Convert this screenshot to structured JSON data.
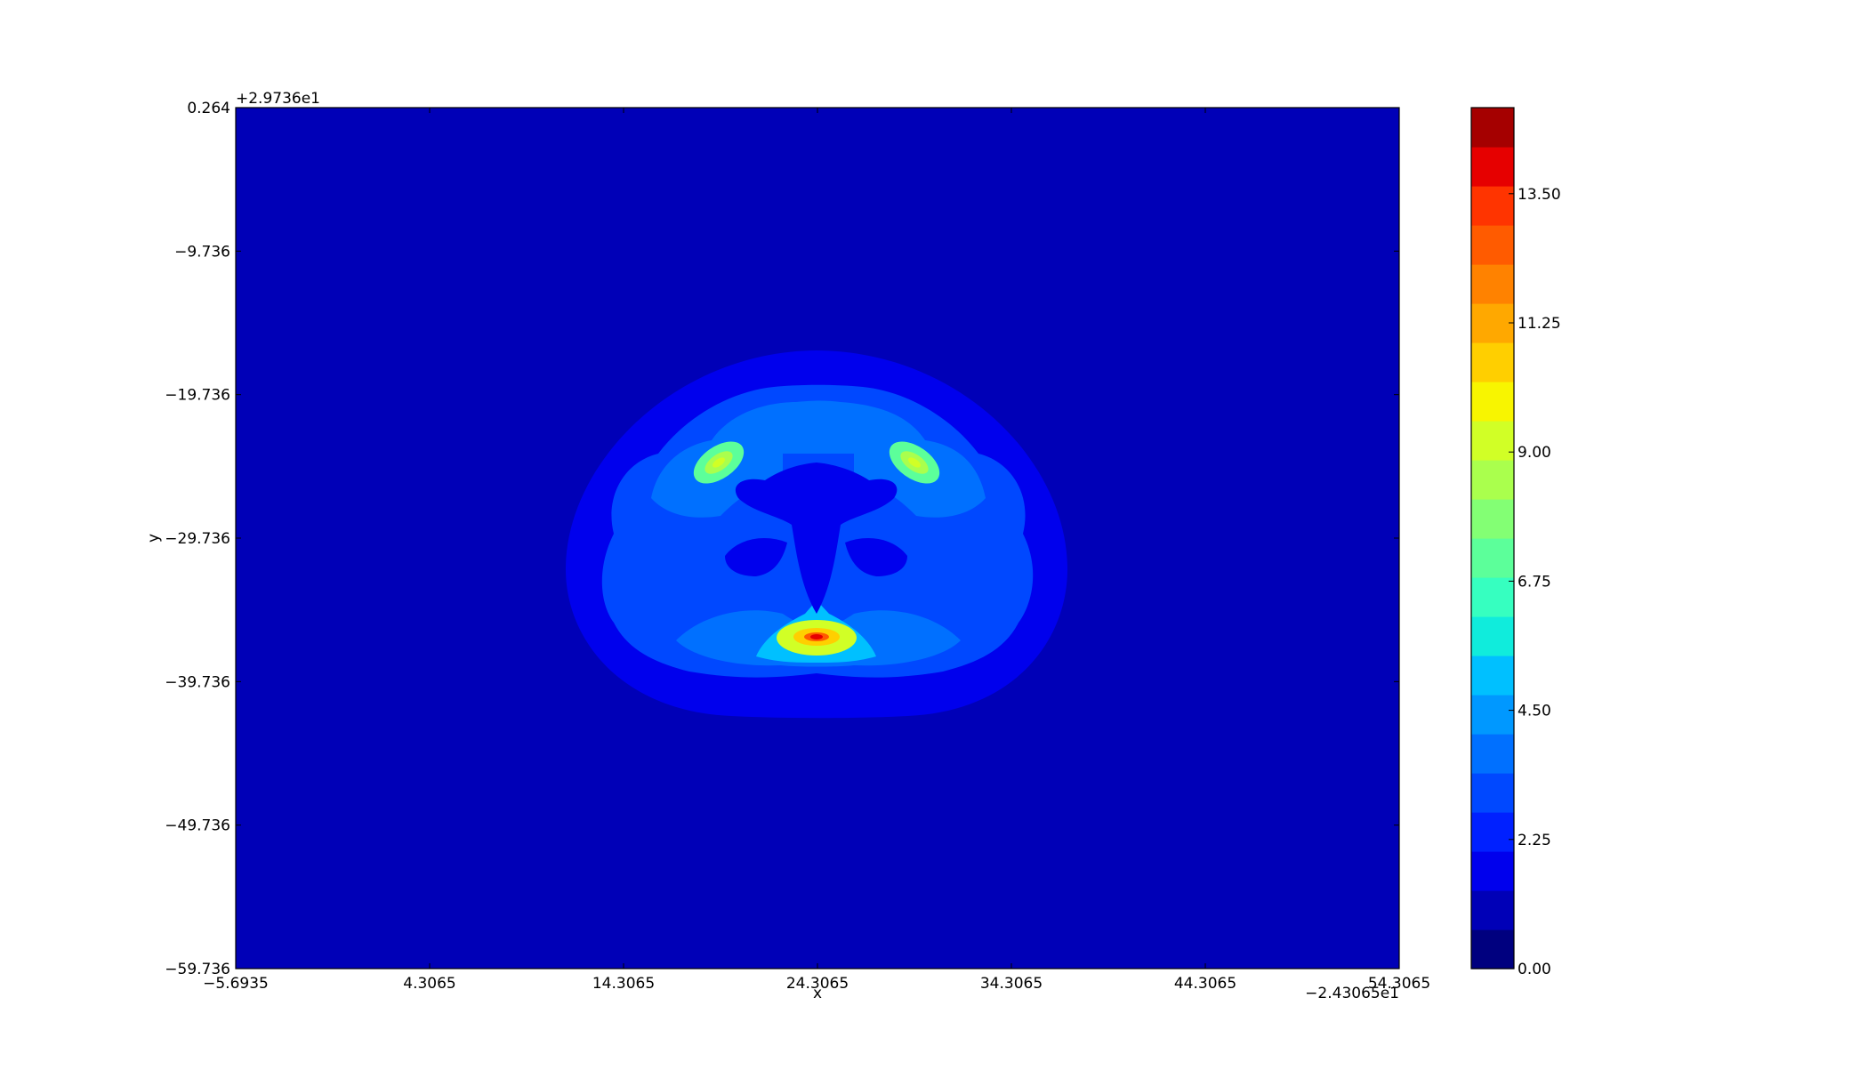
{
  "chart_data": {
    "type": "heatmap",
    "subtype": "filled-contour",
    "colormap": "jet",
    "xlabel": "x",
    "ylabel": "y",
    "x_offset_label": "−2.43065e1",
    "y_offset_label": "+2.9736e1",
    "xlim": [
      -5.6935,
      54.3065
    ],
    "ylim": [
      -59.736,
      0.264
    ],
    "x_ticks": [
      "−5.6935",
      "4.3065",
      "14.3065",
      "24.3065",
      "34.3065",
      "44.3065",
      "54.3065"
    ],
    "x_tick_values": [
      -5.6935,
      4.3065,
      14.3065,
      24.3065,
      34.3065,
      44.3065,
      54.3065
    ],
    "y_ticks": [
      "0.264",
      "−9.736",
      "−19.736",
      "−29.736",
      "−39.736",
      "−49.736",
      "−59.736"
    ],
    "y_tick_values": [
      0.264,
      -9.736,
      -19.736,
      -29.736,
      -39.736,
      -49.736,
      -59.736
    ],
    "grid": false,
    "colorbar": {
      "min": 0.0,
      "max": 15.0,
      "levels": 20,
      "tick_labels": [
        "0.00",
        "2.25",
        "4.50",
        "6.75",
        "9.00",
        "11.25",
        "13.50"
      ],
      "tick_values": [
        0.0,
        2.25,
        4.5,
        6.75,
        9.0,
        11.25,
        13.5
      ],
      "colors": [
        "#00007f",
        "#0000b7",
        "#0000ed",
        "#0020ff",
        "#0048ff",
        "#0070ff",
        "#0098ff",
        "#00c0ff",
        "#10ecdc",
        "#36ffc0",
        "#5cff9a",
        "#83ff74",
        "#aaff4d",
        "#d1ff26",
        "#f8f500",
        "#ffcf00",
        "#ffa800",
        "#ff8200",
        "#ff5b00",
        "#ff3400",
        "#e60000",
        "#a50000"
      ]
    },
    "field": {
      "background_value": 0.8,
      "regions": [
        {
          "name": "outer-shell",
          "value": 1.6
        },
        {
          "name": "tissue",
          "value": 3.0
        },
        {
          "name": "cortex",
          "value": 4.0
        },
        {
          "name": "inner-ring",
          "value": 4.8
        },
        {
          "name": "ventricle",
          "value": 1.4
        },
        {
          "name": "left-hotspot",
          "peak": 9.5
        },
        {
          "name": "right-hotspot",
          "peak": 9.5
        },
        {
          "name": "bottom-hotspot",
          "peak": 14.0
        }
      ]
    }
  }
}
